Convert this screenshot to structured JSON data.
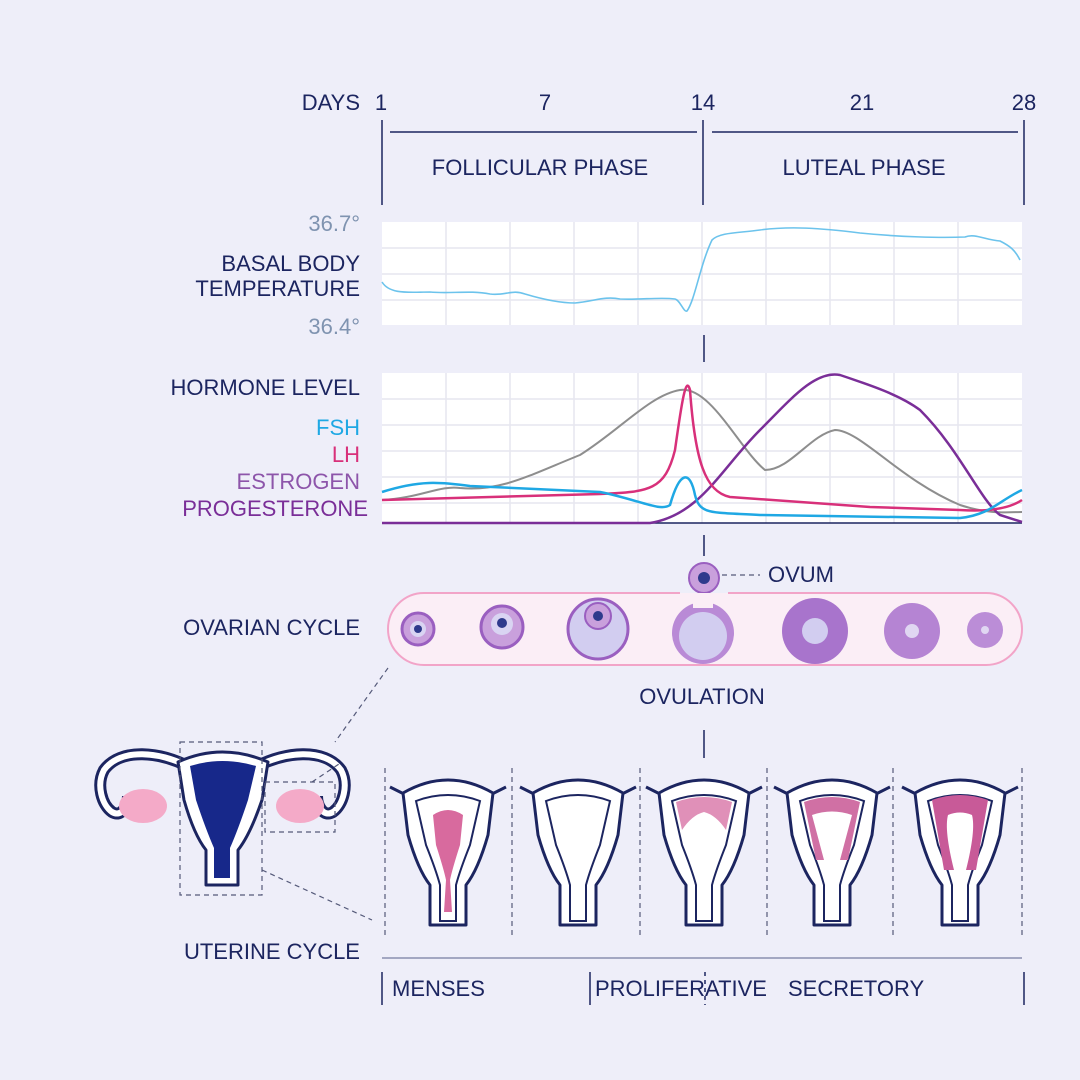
{
  "days": {
    "label": "DAYS",
    "ticks": [
      1,
      7,
      14,
      21,
      28
    ]
  },
  "phases": [
    "FOLLICULAR PHASE",
    "LUTEAL PHASE"
  ],
  "temperature": {
    "label": [
      "BASAL BODY",
      "TEMPERATURE"
    ],
    "max": "36.7°",
    "min": "36.4°"
  },
  "hormones": {
    "label": "HORMONE LEVEL",
    "legend": [
      {
        "name": "FSH",
        "color": "#1fa8e4"
      },
      {
        "name": "LH",
        "color": "#d8307a"
      },
      {
        "name": "ESTROGEN",
        "color": "#8d55aa"
      },
      {
        "name": "PROGESTERONE",
        "color": "#7a2e98"
      }
    ]
  },
  "ovarian": {
    "label": "OVARIAN CYCLE",
    "ovum": "OVUM",
    "ovulation": "OVULATION"
  },
  "uterine": {
    "label": "UTERINE CYCLE",
    "phases": [
      "MENSES",
      "PROLIFERATIVE",
      "SECRETORY"
    ]
  }
}
